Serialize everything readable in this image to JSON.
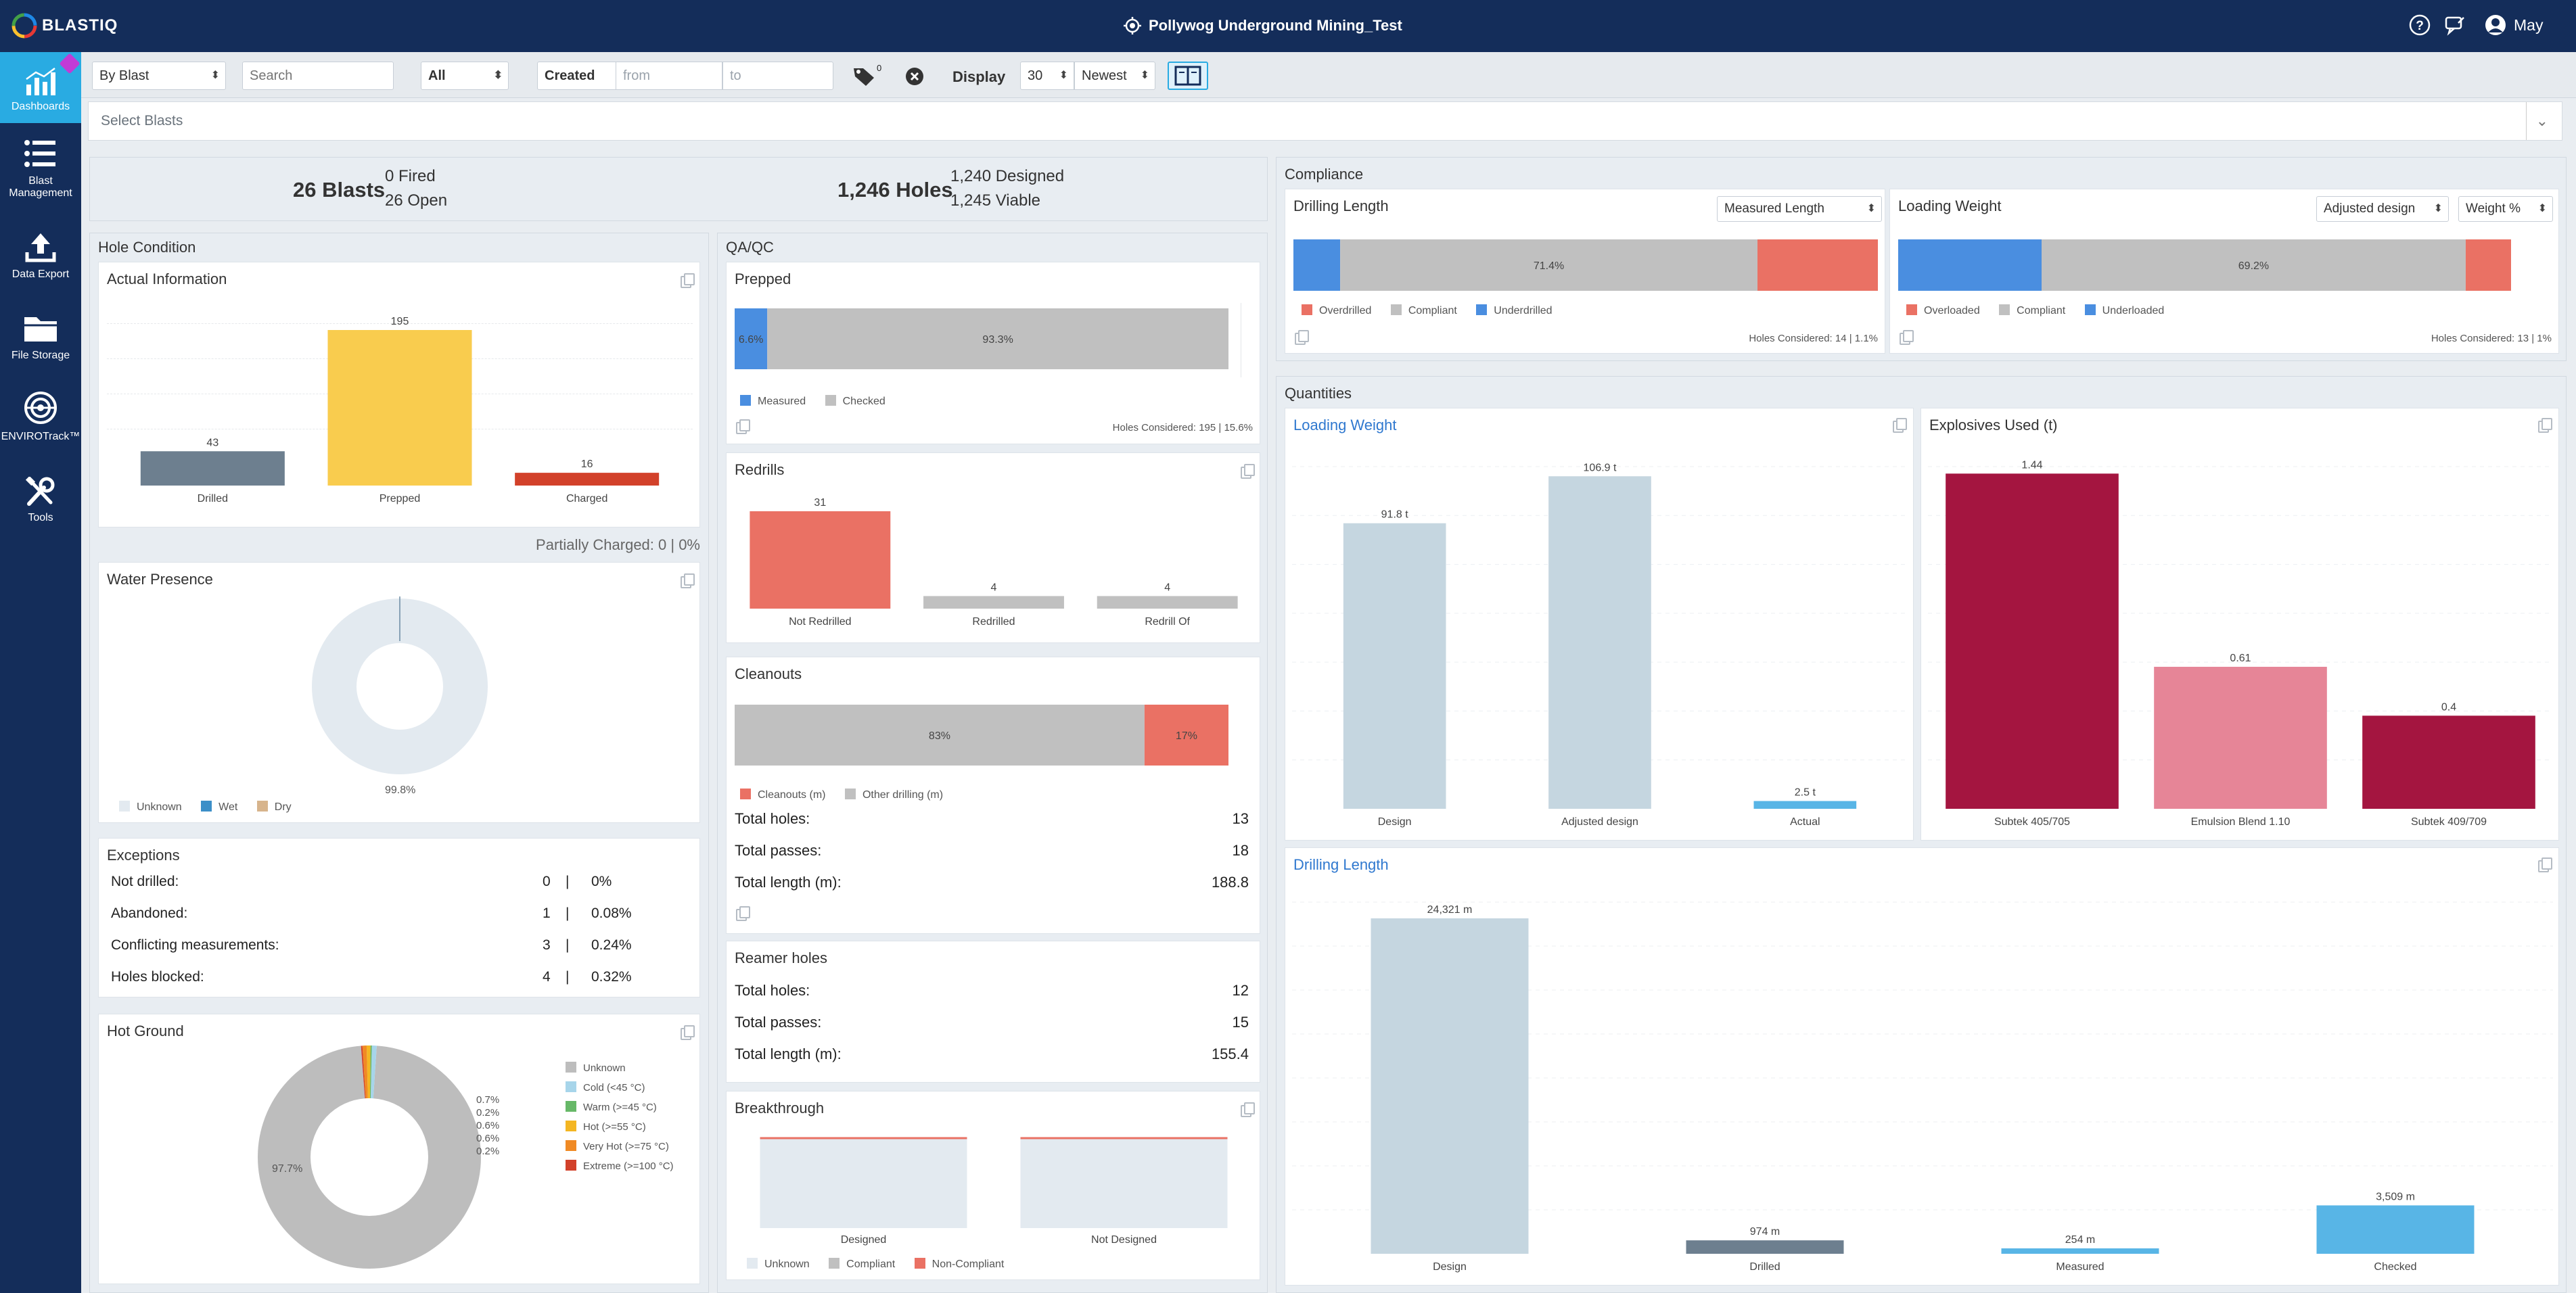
{
  "app": {
    "logo": "BLASTIQ",
    "project_title": "Pollywog Underground Mining_Test",
    "user": "May"
  },
  "colors": {
    "navy": "#142d5a",
    "accent": "#29abe2",
    "blue": "#4a8ee0",
    "grey": "#c0c0c0",
    "red": "#ea7164",
    "yellow": "#f9cc4e",
    "slate": "#6d7f8f",
    "orange_red": "#d2412a",
    "maroon": "#a41540",
    "pink": "#e68597",
    "lightblue": "#c5d6e0",
    "sky": "#58b5e6"
  },
  "sidebar": {
    "items": [
      {
        "label": "Dashboards",
        "icon": "bar-chart-icon"
      },
      {
        "label": "Blast Management",
        "icon": "list-icon"
      },
      {
        "label": "Data Export",
        "icon": "upload-icon"
      },
      {
        "label": "File Storage",
        "icon": "folder-icon"
      },
      {
        "label": "ENVIROTrack™",
        "icon": "envirotrack-icon"
      },
      {
        "label": "Tools",
        "icon": "tools-icon"
      }
    ]
  },
  "filters": {
    "mode": "By Blast",
    "search_placeholder": "Search",
    "status": "All",
    "date_field": "Created",
    "from_placeholder": "from",
    "to_placeholder": "to",
    "tag_count": "0",
    "display_label": "Display",
    "display_count": "30",
    "sort": "Newest"
  },
  "select_blasts_placeholder": "Select Blasts",
  "summary": {
    "blasts": "26 Blasts",
    "fired": "0 Fired",
    "open": "26 Open",
    "holes": "1,246 Holes",
    "designed": "1,240 Designed",
    "viable": "1,245 Viable"
  },
  "hole_condition": {
    "title": "Hole Condition",
    "actual": {
      "title": "Actual Information",
      "partially_charged": "Partially Charged: 0 | 0%"
    },
    "water": {
      "title": "Water Presence",
      "pct": "99.8%",
      "legend": [
        "Unknown",
        "Wet",
        "Dry"
      ]
    },
    "exceptions": {
      "title": "Exceptions",
      "rows": [
        {
          "label": "Not drilled:",
          "count": "0",
          "pct": "0%"
        },
        {
          "label": "Abandoned:",
          "count": "1",
          "pct": "0.08%"
        },
        {
          "label": "Conflicting measurements:",
          "count": "3",
          "pct": "0.24%"
        },
        {
          "label": "Holes blocked:",
          "count": "4",
          "pct": "0.32%"
        }
      ]
    },
    "hot_ground": {
      "title": "Hot Ground",
      "main_pct": "97.7%",
      "side_pcts": [
        "0.7%",
        "0.2%",
        "0.6%",
        "0.6%",
        "0.2%"
      ],
      "legend": [
        "Unknown",
        "Cold (<45 °C)",
        "Warm (>=45 °C)",
        "Hot (>=55 °C)",
        "Very Hot (>=75 °C)",
        "Extreme (>=100 °C)"
      ]
    }
  },
  "qaqc": {
    "title": "QA/QC",
    "prepped": {
      "title": "Prepped",
      "legend": [
        "Measured",
        "Checked"
      ],
      "footer": "Holes Considered: 195 | 15.6%"
    },
    "redrills": {
      "title": "Redrills"
    },
    "cleanouts": {
      "title": "Cleanouts",
      "legend": [
        "Cleanouts (m)",
        "Other drilling (m)"
      ],
      "rows": [
        {
          "label": "Total holes:",
          "value": "13"
        },
        {
          "label": "Total passes:",
          "value": "18"
        },
        {
          "label": "Total length (m):",
          "value": "188.8"
        }
      ]
    },
    "reamer": {
      "title": "Reamer holes",
      "rows": [
        {
          "label": "Total holes:",
          "value": "12"
        },
        {
          "label": "Total passes:",
          "value": "15"
        },
        {
          "label": "Total length (m):",
          "value": "155.4"
        }
      ]
    },
    "breakthrough": {
      "title": "Breakthrough",
      "legend": [
        "Unknown",
        "Compliant",
        "Non-Compliant"
      ]
    }
  },
  "compliance": {
    "title": "Compliance",
    "drilling": {
      "title": "Drilling Length",
      "selector": "Measured Length",
      "legend": [
        "Overdrilled",
        "Compliant",
        "Underdrilled"
      ],
      "footer": "Holes Considered: 14 | 1.1%"
    },
    "loading": {
      "title": "Loading Weight",
      "selector1": "Adjusted design",
      "selector2": "Weight %",
      "legend": [
        "Overloaded",
        "Compliant",
        "Underloaded"
      ],
      "footer": "Holes Considered: 13 | 1%"
    }
  },
  "quantities": {
    "title": "Quantities",
    "loading_title": "Loading Weight",
    "explosives_title": "Explosives Used (t)",
    "drilling_title": "Drilling Length"
  },
  "chart_data": [
    {
      "type": "bar",
      "title": "Actual Information",
      "categories": [
        "Drilled",
        "Prepped",
        "Charged"
      ],
      "values": [
        43,
        195,
        16
      ],
      "ylim": [
        0,
        195
      ]
    },
    {
      "type": "pie",
      "title": "Water Presence",
      "categories": [
        "Unknown",
        "Wet",
        "Dry"
      ],
      "values": [
        99.8,
        0.2,
        0
      ],
      "labels": [
        "99.8%"
      ]
    },
    {
      "type": "pie",
      "title": "Hot Ground",
      "categories": [
        "Unknown",
        "Cold (<45 °C)",
        "Warm (>=45 °C)",
        "Hot (>=55 °C)",
        "Very Hot (>=75 °C)",
        "Extreme (>=100 °C)"
      ],
      "values": [
        97.7,
        0.7,
        0.2,
        0.6,
        0.6,
        0.2
      ]
    },
    {
      "type": "bar",
      "title": "Prepped",
      "stacked": true,
      "categories": [
        "Measured",
        "Checked"
      ],
      "values": [
        6.6,
        93.3
      ],
      "labels": [
        "6.6%",
        "93.3%"
      ]
    },
    {
      "type": "bar",
      "title": "Redrills",
      "categories": [
        "Not Redrilled",
        "Redrilled",
        "Redrill Of"
      ],
      "values": [
        31,
        4,
        4
      ]
    },
    {
      "type": "bar",
      "title": "Cleanouts",
      "stacked": true,
      "categories": [
        "Other drilling (m)",
        "Cleanouts (m)"
      ],
      "values": [
        83,
        17
      ],
      "labels": [
        "83%",
        "17%"
      ]
    },
    {
      "type": "bar",
      "title": "Breakthrough",
      "categories": [
        "Designed",
        "Not Designed"
      ],
      "values": [
        1,
        1
      ]
    },
    {
      "type": "bar",
      "title": "Drilling Length",
      "stacked": true,
      "categories": [
        "Underdrilled",
        "Compliant",
        "Overdrilled"
      ],
      "values": [
        8.0,
        71.4,
        20.6
      ],
      "labels": [
        "",
        "71.4%",
        ""
      ]
    },
    {
      "type": "bar",
      "title": "Loading Weight",
      "stacked": true,
      "categories": [
        "Underloaded",
        "Compliant",
        "Overloaded"
      ],
      "values": [
        23.4,
        69.2,
        7.4
      ],
      "labels": [
        "",
        "69.2%",
        ""
      ]
    },
    {
      "type": "bar",
      "title": "Loading Weight",
      "categories": [
        "Design",
        "Adjusted design",
        "Actual"
      ],
      "values": [
        91.8,
        106.9,
        2.5
      ],
      "labels": [
        "91.8 t",
        "106.9 t",
        "2.5 t"
      ]
    },
    {
      "type": "bar",
      "title": "Explosives Used (t)",
      "categories": [
        "Subtek 405/705",
        "Emulsion Blend 1.10",
        "Subtek 409/709"
      ],
      "values": [
        1.44,
        0.61,
        0.4
      ],
      "labels": [
        "1.44",
        "0.61",
        "0.4"
      ]
    },
    {
      "type": "bar",
      "title": "Drilling Length",
      "categories": [
        "Design",
        "Drilled",
        "Measured",
        "Checked"
      ],
      "values": [
        24321,
        974,
        254,
        3509
      ],
      "labels": [
        "24,321 m",
        "974 m",
        "254 m",
        "3,509 m"
      ]
    }
  ]
}
